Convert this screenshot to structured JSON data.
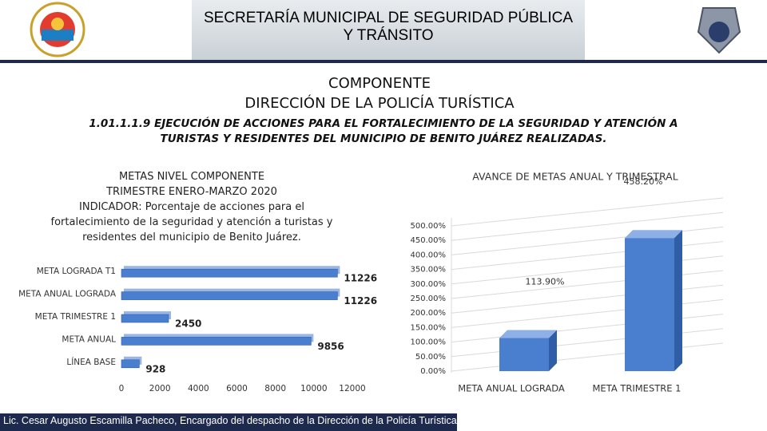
{
  "header": {
    "title_lines": [
      "SECRETARÍA MUNICIPAL DE SEGURIDAD PÚBLICA",
      "Y TRÁNSITO"
    ]
  },
  "component": {
    "lines": [
      "COMPONENTE",
      "DIRECCIÓN DE LA POLICÍA TURÍSTICA"
    ]
  },
  "indicator": "1.01.1.1.9 EJECUCIÓN DE ACCIONES PARA EL FORTALECIMIENTO DE LA SEGURIDAD  Y ATENCIÓN A TURISTAS Y RESIDENTES DEL MUNICIPIO DE BENITO JUÁREZ REALIZADAS.",
  "footer": "Lic. Cesar Augusto Escamilla Pacheco, Encargado del despacho de la Dirección de la Policía Turística.",
  "chart_data": [
    {
      "type": "bar",
      "horizontal": true,
      "title_lines": [
        "METAS NIVEL COMPONENTE",
        "TRIMESTRE ENERO-MARZO 2020",
        "INDICADOR: Porcentaje de acciones para el fortalecimiento de la seguridad y atención a turistas y residentes del municipio de Benito Juárez."
      ],
      "categories": [
        "META LOGRADA T1",
        "META ANUAL LOGRADA",
        "META TRIMESTRE 1",
        "META ANUAL",
        "LÍNEA BASE"
      ],
      "values": [
        11226,
        11226,
        2450,
        9856,
        928
      ],
      "color": "#4a7fd0",
      "xlim": [
        0,
        12000
      ],
      "xticks": [
        0,
        2000,
        4000,
        6000,
        8000,
        10000,
        12000
      ]
    },
    {
      "type": "bar",
      "title": "AVANCE DE METAS ANUAL Y TRIMESTRAL",
      "categories": [
        "META ANUAL LOGRADA",
        "META TRIMESTRE 1"
      ],
      "values": [
        113.9,
        458.2
      ],
      "value_labels": [
        "113.90%",
        "458.20%"
      ],
      "color": "#4a7fd0",
      "ylim": [
        0,
        500
      ],
      "yticks": [
        {
          "value": 0,
          "label": "0.00%"
        },
        {
          "value": 50,
          "label": "50.00%"
        },
        {
          "value": 100,
          "label": "100.00%"
        },
        {
          "value": 150,
          "label": "150.00%"
        },
        {
          "value": 200,
          "label": "200.00%"
        },
        {
          "value": 250,
          "label": "250.00%"
        },
        {
          "value": 300,
          "label": "300.00%"
        },
        {
          "value": 350,
          "label": "350.00%"
        },
        {
          "value": 400,
          "label": "400.00%"
        },
        {
          "value": 450,
          "label": "450.00%"
        },
        {
          "value": 500,
          "label": "500.00%"
        }
      ],
      "grid": true
    }
  ]
}
